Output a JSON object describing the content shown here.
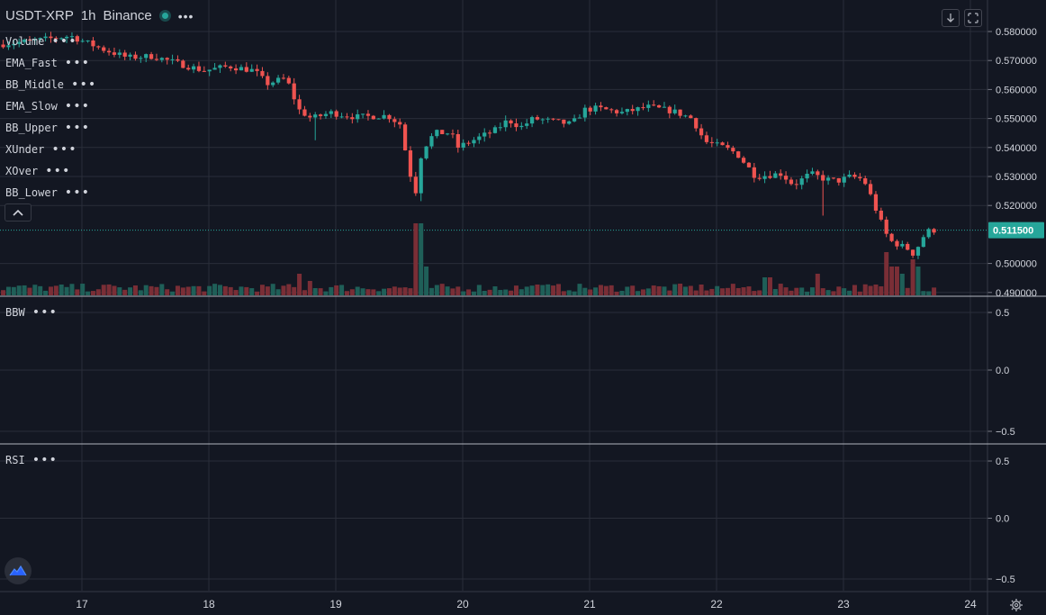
{
  "header": {
    "symbol": "USDT-XRP",
    "interval": "1h",
    "exchange": "Binance",
    "menu_dots": "•••"
  },
  "indicators": [
    {
      "name": "Volume"
    },
    {
      "name": "EMA_Fast"
    },
    {
      "name": "BB_Middle"
    },
    {
      "name": "EMA_Slow"
    },
    {
      "name": "BB_Upper"
    },
    {
      "name": "XUnder"
    },
    {
      "name": "XOver"
    },
    {
      "name": "BB_Lower"
    }
  ],
  "panes": {
    "bbw": {
      "label": "BBW",
      "ticks": [
        "0.5",
        "0.0",
        "−0.5"
      ]
    },
    "rsi": {
      "label": "RSI",
      "ticks": [
        "0.5",
        "0.0",
        "−0.5"
      ]
    }
  },
  "colors": {
    "background": "#131722",
    "grid": "#2a2e39",
    "up": "#26a69a",
    "down": "#ef5350",
    "up_volume": "#1f5f58",
    "down_volume": "#7a2e36",
    "last_price_bg": "#26a69a",
    "axis_text": "#d1d4dc"
  },
  "icons": {
    "collapse": "chevron-up-icon",
    "scroll_down": "arrow-down-icon",
    "fit": "autoscale-icon",
    "logo": "tradingview-logo-icon",
    "settings": "gear-icon"
  },
  "chart_data": {
    "type": "candlestick",
    "x_ticks": [
      "17",
      "18",
      "19",
      "20",
      "21",
      "22",
      "23",
      "24"
    ],
    "x_range_days": [
      16.38,
      24.17
    ],
    "y_ticks": [
      "0.580000",
      "0.570000",
      "0.560000",
      "0.550000",
      "0.540000",
      "0.530000",
      "0.520000",
      "0.500000",
      "0.490000"
    ],
    "ylim": [
      0.4888,
      0.5806
    ],
    "last_price": 0.5115,
    "last_price_label": "0.511500",
    "grid": true,
    "legend_position": "top-left",
    "candle_interval_hours": 1,
    "anchors": [
      [
        16.38,
        0.5755
      ],
      [
        16.7,
        0.577
      ],
      [
        16.95,
        0.5785
      ],
      [
        17.2,
        0.574
      ],
      [
        17.4,
        0.571
      ],
      [
        17.6,
        0.5715
      ],
      [
        17.8,
        0.569
      ],
      [
        18.0,
        0.5665
      ],
      [
        18.2,
        0.568
      ],
      [
        18.4,
        0.5665
      ],
      [
        18.5,
        0.562
      ],
      [
        18.65,
        0.564
      ],
      [
        18.75,
        0.553
      ],
      [
        18.85,
        0.55
      ],
      [
        19.0,
        0.552
      ],
      [
        19.2,
        0.5505
      ],
      [
        19.45,
        0.551
      ],
      [
        19.55,
        0.548
      ],
      [
        19.62,
        0.532
      ],
      [
        19.67,
        0.5245
      ],
      [
        19.72,
        0.539
      ],
      [
        19.82,
        0.545
      ],
      [
        19.95,
        0.545
      ],
      [
        20.0,
        0.54
      ],
      [
        20.15,
        0.543
      ],
      [
        20.3,
        0.546
      ],
      [
        20.4,
        0.5495
      ],
      [
        20.5,
        0.547
      ],
      [
        20.6,
        0.55
      ],
      [
        20.75,
        0.549
      ],
      [
        20.9,
        0.548
      ],
      [
        21.0,
        0.553
      ],
      [
        21.1,
        0.5535
      ],
      [
        21.3,
        0.552
      ],
      [
        21.5,
        0.554
      ],
      [
        21.7,
        0.5525
      ],
      [
        21.85,
        0.55
      ],
      [
        21.95,
        0.542
      ],
      [
        22.1,
        0.54
      ],
      [
        22.2,
        0.538
      ],
      [
        22.35,
        0.53
      ],
      [
        22.55,
        0.531
      ],
      [
        22.65,
        0.527
      ],
      [
        22.78,
        0.531
      ],
      [
        22.9,
        0.529
      ],
      [
        23.0,
        0.5285
      ],
      [
        23.1,
        0.53
      ],
      [
        23.2,
        0.529
      ],
      [
        23.25,
        0.524
      ],
      [
        23.33,
        0.515
      ],
      [
        23.4,
        0.508
      ],
      [
        23.55,
        0.505
      ],
      [
        23.6,
        0.503
      ],
      [
        23.65,
        0.508
      ],
      [
        23.7,
        0.511
      ],
      [
        23.75,
        0.5115
      ]
    ],
    "volume_spikes": [
      [
        19.65,
        10
      ],
      [
        19.7,
        4
      ],
      [
        18.7,
        3
      ],
      [
        18.8,
        2
      ],
      [
        20.6,
        1.5
      ],
      [
        22.4,
        2.5
      ],
      [
        22.8,
        3
      ],
      [
        23.33,
        6
      ],
      [
        23.4,
        4
      ],
      [
        23.47,
        3
      ],
      [
        23.55,
        5
      ],
      [
        23.6,
        4
      ]
    ]
  }
}
